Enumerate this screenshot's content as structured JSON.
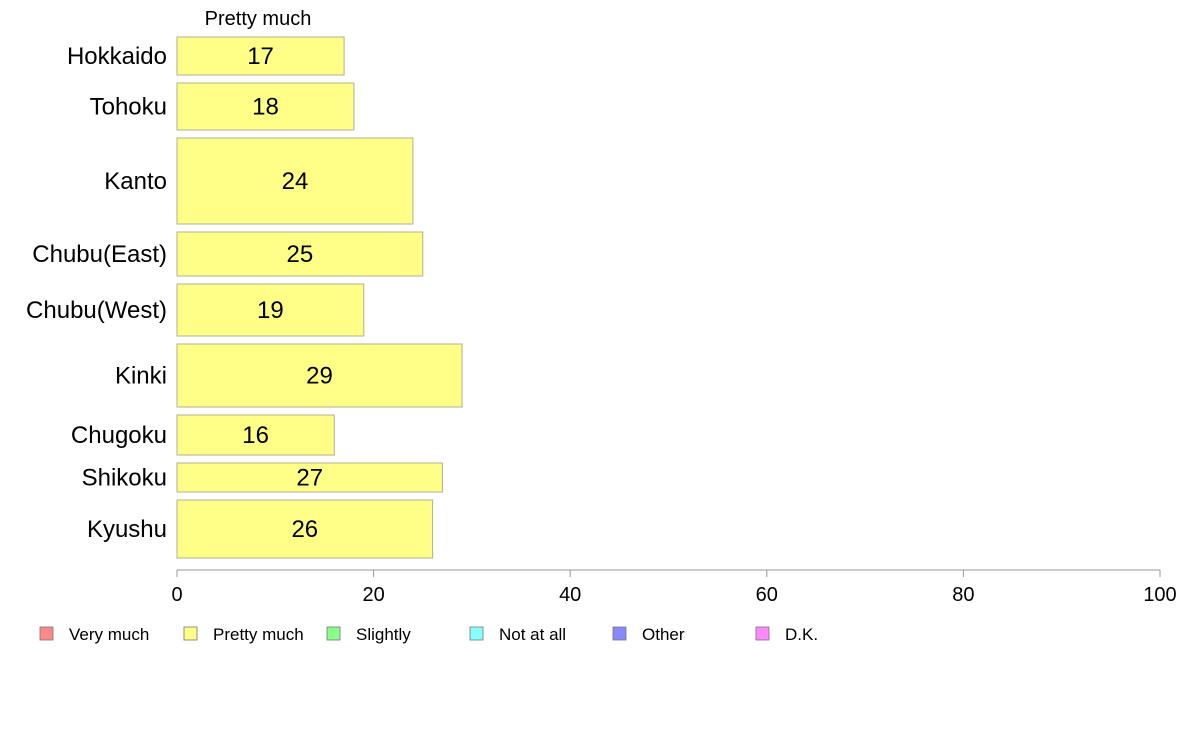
{
  "chart_data": {
    "type": "bar",
    "orientation": "horizontal",
    "column_header": "Pretty much",
    "categories": [
      "Hokkaido",
      "Tohoku",
      "Kanto",
      "Chubu(East)",
      "Chubu(West)",
      "Kinki",
      "Chugoku",
      "Shikoku",
      "Kyushu"
    ],
    "series": [
      {
        "name": "Pretty much",
        "color": "#ffff88",
        "values": [
          17,
          18,
          24,
          25,
          19,
          29,
          16,
          27,
          26
        ]
      }
    ],
    "xlim": [
      0,
      100
    ],
    "xticks": [
      0,
      20,
      40,
      60,
      80,
      100
    ],
    "legend": {
      "position": "bottom",
      "items": [
        {
          "label": "Very much",
          "color": "#ff8888"
        },
        {
          "label": "Pretty much",
          "color": "#ffff88"
        },
        {
          "label": "Slightly",
          "color": "#88ff88"
        },
        {
          "label": "Not at all",
          "color": "#88ffff"
        },
        {
          "label": "Other",
          "color": "#8888ff"
        },
        {
          "label": "D.K.",
          "color": "#ff88ff"
        }
      ]
    }
  }
}
